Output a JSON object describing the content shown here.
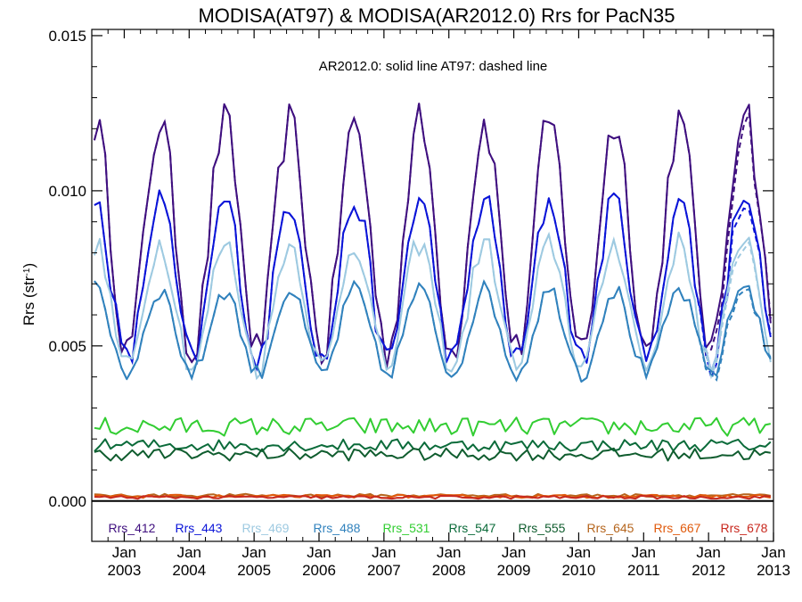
{
  "chart_data": {
    "type": "line",
    "title": "MODISA(AT97) & MODISA(AR2012.0)  Rrs for PacN35",
    "ylabel": "Rrs (str",
    "ylabel_sup": "-1",
    "ylabel_close": ")",
    "annotation": "AR2012.0: solid line   AT97: dashed line",
    "xlim": [
      2002.5,
      2013.0
    ],
    "ylim": [
      -0.0013,
      0.0152
    ],
    "y_ticks": [
      0.0,
      0.005,
      0.01,
      0.015
    ],
    "y_tick_labels": [
      "0.000",
      "0.005",
      "0.010",
      "0.015"
    ],
    "x_ticks": [
      2003,
      2004,
      2005,
      2006,
      2007,
      2008,
      2009,
      2010,
      2011,
      2012,
      2013
    ],
    "x_tick_month": "Jan",
    "x_tick_years": [
      "2003",
      "2004",
      "2005",
      "2006",
      "2007",
      "2008",
      "2009",
      "2010",
      "2011",
      "2012",
      "2013"
    ],
    "zero_line": true,
    "series": [
      {
        "name": "Rrs_412",
        "color": "#3f0f7f",
        "summer": 0.0122,
        "winter": 0.0048,
        "jitter": 0.0007
      },
      {
        "name": "Rrs_443",
        "color": "#0a14d8",
        "summer": 0.0097,
        "winter": 0.0045,
        "jitter": 0.0005
      },
      {
        "name": "Rrs_469",
        "color": "#9ecae1",
        "summer": 0.0083,
        "winter": 0.0043,
        "jitter": 0.0004
      },
      {
        "name": "Rrs_488",
        "color": "#3182bd",
        "summer": 0.0068,
        "winter": 0.0041,
        "jitter": 0.0003
      },
      {
        "name": "Rrs_531",
        "color": "#32cd32",
        "summer": 0.0024,
        "winter": 0.0024,
        "jitter": 0.0003
      },
      {
        "name": "Rrs_547",
        "color": "#0b6b3a",
        "summer": 0.0018,
        "winter": 0.0018,
        "jitter": 0.0002
      },
      {
        "name": "Rrs_555",
        "color": "#0f5c2e",
        "summer": 0.0015,
        "winter": 0.0015,
        "jitter": 0.0002
      },
      {
        "name": "Rrs_645",
        "color": "#b5651d",
        "summer": 0.00018,
        "winter": 0.00018,
        "jitter": 5e-05
      },
      {
        "name": "Rrs_667",
        "color": "#e05a0c",
        "summer": 0.00015,
        "winter": 0.00015,
        "jitter": 5e-05
      },
      {
        "name": "Rrs_678",
        "color": "#c8281e",
        "summer": 0.00012,
        "winter": 0.00012,
        "jitter": 5e-05
      }
    ],
    "dashed_series_note": "AT97 dashed lines follow solid lines and diverge in 2012",
    "line_style_solid": "AR2012.0",
    "line_style_dashed": "AT97"
  }
}
